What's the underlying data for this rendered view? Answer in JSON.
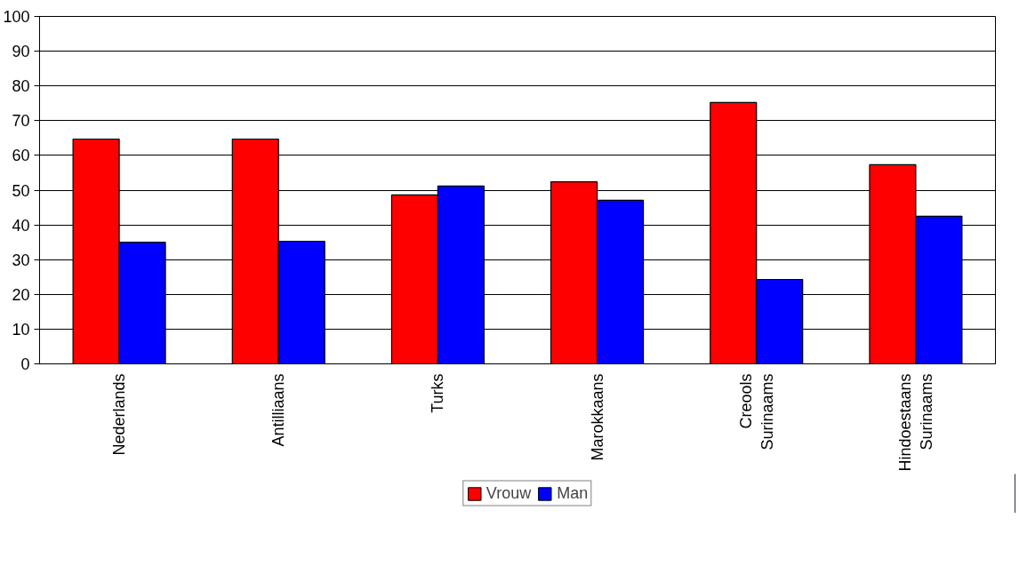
{
  "chart_data": {
    "type": "bar",
    "categories": [
      "Nederlands",
      "Antilliaans",
      "Turks",
      "Marokkaans",
      "Creools Surinaams",
      "Hindoestaans Surinaams"
    ],
    "series": [
      {
        "name": "Vrouw",
        "color": "#ff0000",
        "values": [
          64.7,
          64.7,
          48.6,
          52.4,
          75.2,
          57.3
        ]
      },
      {
        "name": "Man",
        "color": "#0000ff",
        "values": [
          35.0,
          35.3,
          51.2,
          47.1,
          24.3,
          42.5
        ]
      }
    ],
    "ylim": [
      0,
      100
    ],
    "yticks": [
      0,
      10,
      20,
      30,
      40,
      50,
      60,
      70,
      80,
      90,
      100
    ],
    "grid": "y",
    "legend": "bottom"
  }
}
